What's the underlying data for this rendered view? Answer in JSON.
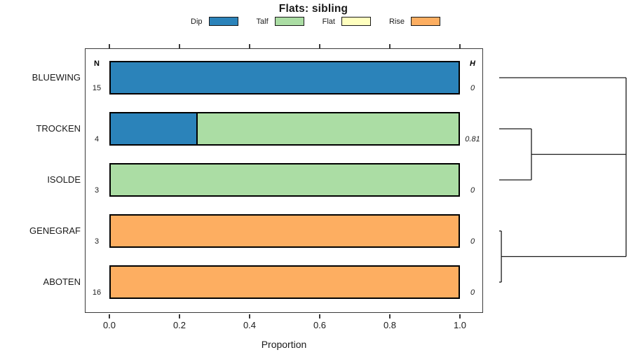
{
  "title": "Flats: sibling",
  "legend": {
    "items": [
      {
        "label": "Dip",
        "color": "#2B83BA"
      },
      {
        "label": "Talf",
        "color": "#ABDDA4"
      },
      {
        "label": "Flat",
        "color": "#FFFFBF"
      },
      {
        "label": "Rise",
        "color": "#FDAE61"
      }
    ]
  },
  "columns": {
    "n_header": "N",
    "h_header": "H"
  },
  "xaxis": {
    "label": "Proportion",
    "tick_labels": [
      "0.0",
      "0.2",
      "0.4",
      "0.6",
      "0.8",
      "1.0"
    ]
  },
  "chart_data": {
    "type": "bar",
    "orientation": "horizontal-stacked",
    "title": "Flats: sibling",
    "xlabel": "Proportion",
    "xlim": [
      0,
      1
    ],
    "xticks": [
      0.0,
      0.2,
      0.4,
      0.6,
      0.8,
      1.0
    ],
    "grid": false,
    "legend_position": "top",
    "categories": [
      "BLUEWING",
      "TROCKEN",
      "ISOLDE",
      "GENEGRAF",
      "ABOTEN"
    ],
    "n_values": [
      15,
      4,
      3,
      3,
      16
    ],
    "h_values": [
      "0",
      "0.81",
      "0",
      "0",
      "0"
    ],
    "series": [
      {
        "name": "Dip",
        "color": "#2B83BA",
        "values": [
          1,
          0.25,
          0,
          0,
          0
        ]
      },
      {
        "name": "Talf",
        "color": "#ABDDA4",
        "values": [
          0,
          0.75,
          1,
          0,
          0
        ]
      },
      {
        "name": "Flat",
        "color": "#FFFFBF",
        "values": [
          0,
          0,
          0,
          0,
          0
        ]
      },
      {
        "name": "Rise",
        "color": "#FDAE61",
        "values": [
          0,
          0,
          0,
          1,
          1
        ]
      }
    ]
  },
  "dendrogram": {
    "height_max": 1,
    "segments": [
      {
        "dir": "h",
        "row": 0,
        "h1": 0,
        "h2": 1
      },
      {
        "dir": "h",
        "row": 1,
        "h1": 0,
        "h2": 0.254
      },
      {
        "dir": "h",
        "row": 2,
        "h1": 0,
        "h2": 0.254
      },
      {
        "dir": "v",
        "h": 0.254,
        "row1": 1,
        "row2": 2
      },
      {
        "dir": "h",
        "row": 1.5,
        "h1": 0.254,
        "h2": 1
      },
      {
        "dir": "h",
        "row": 3,
        "h1": 0,
        "h2": 0.017
      },
      {
        "dir": "h",
        "row": 4,
        "h1": 0,
        "h2": 0.017
      },
      {
        "dir": "v",
        "h": 0.017,
        "row1": 3,
        "row2": 4
      },
      {
        "dir": "h",
        "row": 3.5,
        "h1": 0.017,
        "h2": 1
      },
      {
        "dir": "v",
        "h": 1,
        "row1": 0,
        "row2": 3.5
      }
    ]
  }
}
